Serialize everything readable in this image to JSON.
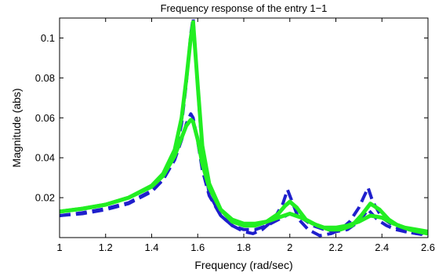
{
  "chart_data": {
    "type": "line",
    "title": "Frequency response of the entry 1−1",
    "xlabel": "Frequency (rad/sec)",
    "ylabel": "Magnitude (abs)",
    "xlim": [
      1.0,
      2.6
    ],
    "ylim": [
      0.0,
      0.11
    ],
    "xticks": [
      1.0,
      1.2,
      1.4,
      1.6,
      1.8,
      2.0,
      2.2,
      2.4,
      2.6
    ],
    "xtick_labels": [
      "1",
      "1.2",
      "1.4",
      "1.6",
      "1.8",
      "2",
      "2.2",
      "2.4",
      "2.6"
    ],
    "yticks": [
      0.02,
      0.04,
      0.06,
      0.08,
      0.1
    ],
    "ytick_labels": [
      "0.02",
      "0.04",
      "0.06",
      "0.08",
      "0.1"
    ],
    "grid": false,
    "legend": "none",
    "series": [
      {
        "style": "dashed",
        "color": "#1f1fcc",
        "width": 4,
        "x": [
          1.0,
          1.1,
          1.2,
          1.3,
          1.4,
          1.45,
          1.5,
          1.53,
          1.55,
          1.57,
          1.58,
          1.6,
          1.62,
          1.65,
          1.7,
          1.75,
          1.8,
          1.84,
          1.88,
          1.93,
          1.97,
          1.99,
          2.01,
          2.04,
          2.08,
          2.13,
          2.18,
          2.22,
          2.26,
          2.3,
          2.32,
          2.34,
          2.36,
          2.4,
          2.45,
          2.5,
          2.55,
          2.6
        ],
        "y": [
          0.011,
          0.012,
          0.014,
          0.017,
          0.023,
          0.029,
          0.041,
          0.057,
          0.077,
          0.102,
          0.11,
          0.075,
          0.043,
          0.022,
          0.011,
          0.006,
          0.003,
          0.002,
          0.004,
          0.009,
          0.017,
          0.024,
          0.018,
          0.009,
          0.004,
          0.001,
          0.002,
          0.004,
          0.008,
          0.015,
          0.02,
          0.025,
          0.018,
          0.01,
          0.006,
          0.003,
          0.002,
          0.001
        ]
      },
      {
        "style": "dashed",
        "color": "#1f1fcc",
        "width": 4,
        "x": [
          1.0,
          1.1,
          1.2,
          1.3,
          1.4,
          1.45,
          1.5,
          1.53,
          1.55,
          1.57,
          1.58,
          1.6,
          1.62,
          1.65,
          1.7,
          1.75,
          1.8,
          1.85,
          1.9,
          1.95,
          2.0,
          2.05,
          2.1,
          2.15,
          2.2,
          2.25,
          2.3,
          2.34,
          2.38,
          2.42,
          2.46,
          2.5,
          2.55,
          2.6
        ],
        "y": [
          0.011,
          0.0125,
          0.0145,
          0.0175,
          0.0235,
          0.029,
          0.039,
          0.049,
          0.057,
          0.062,
          0.06,
          0.048,
          0.034,
          0.021,
          0.011,
          0.006,
          0.004,
          0.004,
          0.006,
          0.009,
          0.012,
          0.01,
          0.006,
          0.004,
          0.003,
          0.004,
          0.008,
          0.014,
          0.009,
          0.006,
          0.004,
          0.003,
          0.002,
          0.002
        ]
      },
      {
        "style": "solid",
        "color": "#22ee22",
        "width": 5,
        "x": [
          1.0,
          1.1,
          1.2,
          1.3,
          1.4,
          1.45,
          1.5,
          1.53,
          1.55,
          1.57,
          1.58,
          1.6,
          1.62,
          1.65,
          1.7,
          1.75,
          1.8,
          1.85,
          1.9,
          1.95,
          1.98,
          2.0,
          2.03,
          2.07,
          2.12,
          2.17,
          2.22,
          2.27,
          2.31,
          2.35,
          2.39,
          2.43,
          2.47,
          2.52,
          2.56,
          2.6
        ],
        "y": [
          0.013,
          0.0145,
          0.0165,
          0.02,
          0.026,
          0.032,
          0.044,
          0.06,
          0.079,
          0.1,
          0.108,
          0.076,
          0.046,
          0.027,
          0.014,
          0.008,
          0.006,
          0.006,
          0.008,
          0.012,
          0.016,
          0.018,
          0.015,
          0.009,
          0.006,
          0.004,
          0.004,
          0.006,
          0.011,
          0.017,
          0.014,
          0.009,
          0.006,
          0.004,
          0.003,
          0.002
        ]
      },
      {
        "style": "solid",
        "color": "#22ee22",
        "width": 5,
        "x": [
          1.0,
          1.1,
          1.2,
          1.3,
          1.4,
          1.45,
          1.5,
          1.53,
          1.55,
          1.57,
          1.58,
          1.6,
          1.62,
          1.65,
          1.7,
          1.75,
          1.8,
          1.85,
          1.9,
          1.95,
          2.0,
          2.05,
          2.1,
          2.15,
          2.2,
          2.25,
          2.3,
          2.35,
          2.4,
          2.45,
          2.5,
          2.55,
          2.6
        ],
        "y": [
          0.013,
          0.0145,
          0.0165,
          0.02,
          0.0255,
          0.031,
          0.041,
          0.05,
          0.056,
          0.059,
          0.058,
          0.049,
          0.037,
          0.025,
          0.014,
          0.009,
          0.007,
          0.007,
          0.008,
          0.01,
          0.012,
          0.01,
          0.007,
          0.005,
          0.005,
          0.006,
          0.008,
          0.011,
          0.01,
          0.007,
          0.005,
          0.004,
          0.003
        ]
      }
    ]
  }
}
